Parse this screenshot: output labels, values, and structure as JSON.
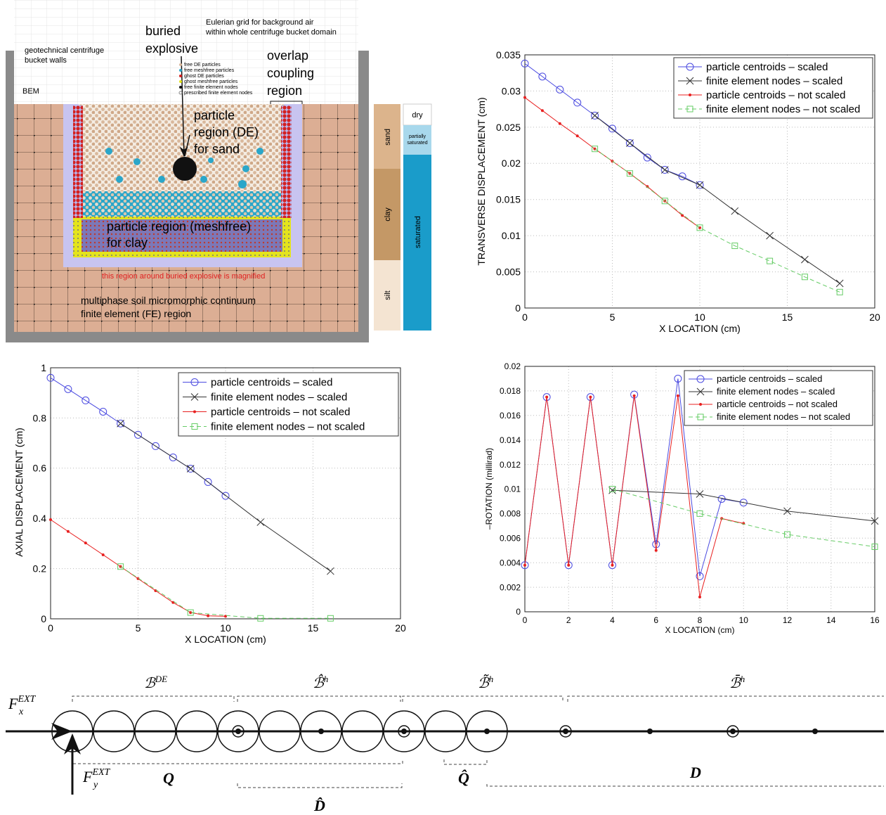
{
  "figure_a": {
    "eulerian_grid": [
      "Eulerian grid for background air",
      "within whole centrifuge bucket domain"
    ],
    "buried_explosive": [
      "buried",
      "explosive"
    ],
    "bucket_walls": [
      "geotechnical centrifuge",
      "bucket walls"
    ],
    "bem": "BEM",
    "overlap": [
      "overlap",
      "coupling",
      "region"
    ],
    "particle_de": [
      "particle",
      "region (DE)",
      "for sand"
    ],
    "particle_meshfree": [
      "particle region (meshfree)",
      "for clay"
    ],
    "magnified": "this region around buried explosive is magnified",
    "fe_region": [
      "multiphase soil micromorphic continuum",
      "finite element (FE) region"
    ],
    "legend": [
      "free DE particles",
      "free meshfree particles",
      "ghost DE particles",
      "ghost meshfree particles",
      "free finite element nodes",
      "prescribed finite element nodes"
    ],
    "soil_layers": [
      "sand",
      "clay",
      "silt"
    ],
    "saturation": [
      "dry",
      "partially",
      "saturated",
      "saturated"
    ]
  },
  "chart_data": [
    {
      "type": "line",
      "xlabel": "X LOCATION (cm)",
      "ylabel": "TRANSVERSE DISPLACEMENT (cm)",
      "xlim": [
        0,
        20
      ],
      "xticks": [
        0,
        5,
        10,
        15,
        20
      ],
      "ylim": [
        0,
        0.035
      ],
      "yticks": [
        0,
        0.005,
        0.01,
        0.015,
        0.02,
        0.025,
        0.03,
        0.035
      ],
      "grid": true,
      "legend": "upper right",
      "series": [
        {
          "name": "particle centroids – scaled",
          "color": "#4a4ae0",
          "marker": "o",
          "linestyle": "solid",
          "x": [
            0,
            1,
            2,
            3,
            4,
            5,
            6,
            7,
            8,
            9,
            10
          ],
          "values": [
            0.0338,
            0.032,
            0.0302,
            0.0284,
            0.0266,
            0.0248,
            0.0228,
            0.0208,
            0.0191,
            0.0182,
            0.017
          ]
        },
        {
          "name": "finite element nodes – scaled",
          "color": "#333333",
          "marker": "x",
          "linestyle": "solid",
          "x": [
            4,
            6,
            8,
            10,
            12,
            14,
            16,
            18
          ],
          "values": [
            0.0266,
            0.0228,
            0.0191,
            0.017,
            0.0134,
            0.01,
            0.0067,
            0.0034
          ]
        },
        {
          "name": "particle centroids – not scaled",
          "color": "#e82020",
          "marker": ".",
          "linestyle": "solid",
          "x": [
            0,
            1,
            2,
            3,
            4,
            5,
            6,
            7,
            8,
            9,
            10
          ],
          "values": [
            0.0291,
            0.0273,
            0.0255,
            0.0238,
            0.022,
            0.0203,
            0.0186,
            0.0168,
            0.0148,
            0.0128,
            0.0111
          ]
        },
        {
          "name": "finite element nodes – not scaled",
          "color": "#66cc66",
          "marker": "s",
          "linestyle": "dashed",
          "x": [
            4,
            6,
            8,
            10,
            12,
            14,
            16,
            18
          ],
          "values": [
            0.022,
            0.0186,
            0.0148,
            0.0111,
            0.0086,
            0.0065,
            0.0043,
            0.0022
          ]
        }
      ]
    },
    {
      "type": "line",
      "xlabel": "X LOCATION (cm)",
      "ylabel": "AXIAL DISPLACEMENT (cm)",
      "xlim": [
        0,
        20
      ],
      "xticks": [
        0,
        5,
        10,
        15,
        20
      ],
      "ylim": [
        0,
        1
      ],
      "yticks": [
        0,
        0.2,
        0.4,
        0.6,
        0.8,
        1
      ],
      "grid": true,
      "legend": "upper right",
      "series": [
        {
          "name": "particle centroids – scaled",
          "color": "#4a4ae0",
          "marker": "o",
          "linestyle": "solid",
          "x": [
            0,
            1,
            2,
            3,
            4,
            5,
            6,
            7,
            8,
            9,
            10
          ],
          "values": [
            0.96,
            0.915,
            0.87,
            0.825,
            0.778,
            0.733,
            0.688,
            0.643,
            0.598,
            0.545,
            0.49
          ]
        },
        {
          "name": "finite element nodes – scaled",
          "color": "#333333",
          "marker": "x",
          "linestyle": "solid",
          "x": [
            4,
            8,
            12,
            16
          ],
          "values": [
            0.778,
            0.598,
            0.385,
            0.19
          ]
        },
        {
          "name": "particle centroids – not scaled",
          "color": "#e82020",
          "marker": ".",
          "linestyle": "solid",
          "x": [
            0,
            1,
            2,
            3,
            4,
            5,
            6,
            7,
            8,
            9,
            10
          ],
          "values": [
            0.395,
            0.348,
            0.302,
            0.255,
            0.208,
            0.16,
            0.112,
            0.065,
            0.025,
            0.012,
            0.01
          ]
        },
        {
          "name": "finite element nodes – not scaled",
          "color": "#66cc66",
          "marker": "s",
          "linestyle": "dashed",
          "x": [
            4,
            8,
            12,
            16
          ],
          "values": [
            0.208,
            0.025,
            0.002,
            0.002
          ]
        }
      ]
    },
    {
      "type": "line",
      "xlabel": "X LOCATION (cm)",
      "ylabel": "–ROTATION (millirad)",
      "xlim": [
        0,
        16
      ],
      "xticks": [
        0,
        2,
        4,
        6,
        8,
        10,
        12,
        14,
        16
      ],
      "ylim": [
        0,
        0.02
      ],
      "yticks": [
        0,
        0.002,
        0.004,
        0.006,
        0.008,
        0.01,
        0.012,
        0.014,
        0.016,
        0.018,
        0.02
      ],
      "grid": true,
      "legend": "upper right",
      "series": [
        {
          "name": "particle centroids – scaled",
          "color": "#4a4ae0",
          "marker": "o",
          "linestyle": "solid",
          "x": [
            0,
            1,
            2,
            3,
            4,
            5,
            6,
            7,
            8,
            9,
            10
          ],
          "values": [
            0.0038,
            0.0175,
            0.0038,
            0.0175,
            0.0038,
            0.0177,
            0.0055,
            0.019,
            0.0029,
            0.0092,
            0.0089
          ]
        },
        {
          "name": "finite element nodes – scaled",
          "color": "#333333",
          "marker": "x",
          "linestyle": "solid",
          "x": [
            4,
            8,
            12,
            16
          ],
          "values": [
            0.0099,
            0.0096,
            0.0082,
            0.0074
          ]
        },
        {
          "name": "particle centroids – not scaled",
          "color": "#e82020",
          "marker": ".",
          "linestyle": "solid",
          "x": [
            0,
            1,
            2,
            3,
            4,
            5,
            6,
            7,
            8,
            9,
            10
          ],
          "values": [
            0.0038,
            0.0175,
            0.0038,
            0.0175,
            0.0038,
            0.0176,
            0.005,
            0.0176,
            0.0012,
            0.0076,
            0.0072
          ]
        },
        {
          "name": "finite element nodes – not scaled",
          "color": "#66cc66",
          "marker": "s",
          "linestyle": "dashed",
          "x": [
            4,
            8,
            12,
            16
          ],
          "values": [
            0.01,
            0.008,
            0.0063,
            0.0053
          ]
        }
      ]
    }
  ],
  "figure_c": {
    "forces": [
      {
        "base": "F",
        "sub": "x",
        "sup": "EXT"
      },
      {
        "base": "F",
        "sub": "y",
        "sup": "EXT"
      }
    ],
    "top_brackets": [
      {
        "base": "ℬ",
        "sup": "DE"
      },
      {
        "base": "ℬ̂",
        "sup": "h"
      },
      {
        "base": "ℬ̃",
        "sup": "h"
      },
      {
        "base": "ℬ̄",
        "sup": "h"
      }
    ],
    "bottom_brackets": [
      "Q",
      "D̂",
      "Q̂",
      "D"
    ]
  }
}
